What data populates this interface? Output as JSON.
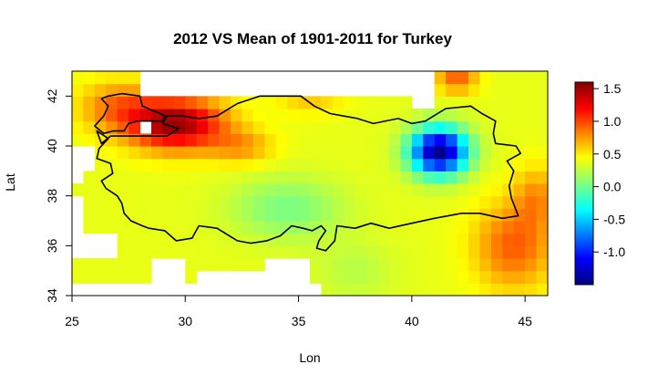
{
  "chart_data": {
    "type": "heatmap",
    "title": "2012 VS Mean of 1901-2011 for Turkey",
    "xlabel": "Lon",
    "ylabel": "Lat",
    "xlim": [
      25,
      46
    ],
    "ylim": [
      34,
      43
    ],
    "x_ticks": [
      25,
      30,
      35,
      40,
      45
    ],
    "y_ticks": [
      34,
      36,
      38,
      40,
      42
    ],
    "cell_size": 0.5,
    "grid": false,
    "colorbar": {
      "range": [
        -1.5,
        1.6
      ],
      "ticks": [
        "1.5",
        "1.0",
        "0.5",
        "0.0",
        "-0.5",
        "-1.0"
      ],
      "colors": [
        "#00007f",
        "#0000ff",
        "#00ffff",
        "#ffff00",
        "#ff0000",
        "#7f0000"
      ]
    },
    "anomaly_centers": [
      {
        "lon": 29.3,
        "lat": 40.8,
        "value": 1.55
      },
      {
        "lon": 41.2,
        "lat": 39.8,
        "value": -1.45
      }
    ]
  }
}
